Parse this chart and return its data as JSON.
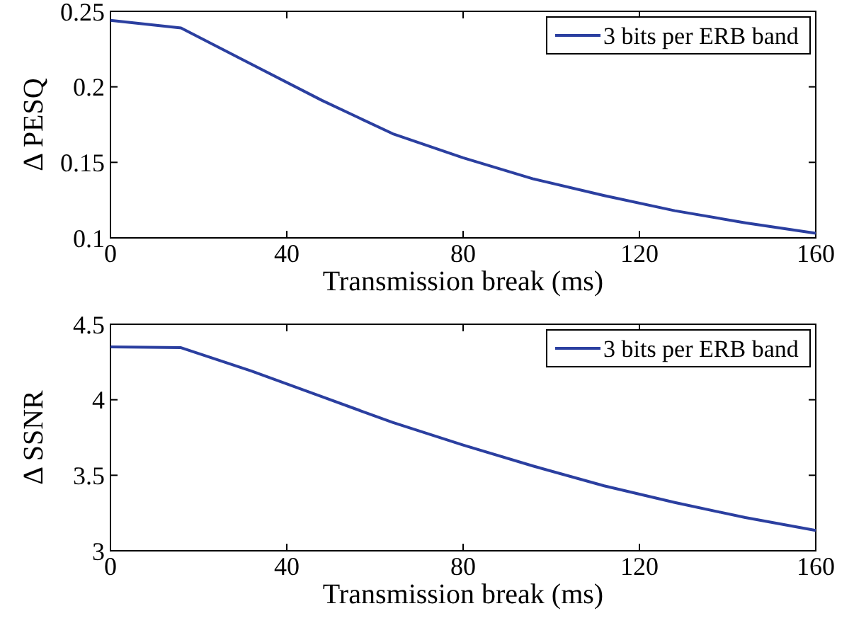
{
  "chart_data": [
    {
      "type": "line",
      "xlabel": "Transmission break (ms)",
      "ylabel": "Δ PESQ",
      "x": [
        0,
        16,
        32,
        48,
        64,
        80,
        96,
        112,
        128,
        144,
        160
      ],
      "series": [
        {
          "name": "3 bits per ERB band",
          "color": "#2b3fa0",
          "values": [
            0.244,
            0.239,
            0.215,
            0.191,
            0.169,
            0.153,
            0.139,
            0.128,
            0.118,
            0.11,
            0.103
          ]
        }
      ],
      "xlim": [
        0,
        160
      ],
      "xticks": [
        0,
        40,
        80,
        120,
        160
      ],
      "ylim": [
        0.1,
        0.25
      ],
      "yticks": [
        0.1,
        0.15,
        0.2,
        0.25
      ],
      "legend": "top right",
      "grid": false,
      "line_style": "solid",
      "marker": "none"
    },
    {
      "type": "line",
      "xlabel": "Transmission break (ms)",
      "ylabel": "Δ SSNR",
      "x": [
        0,
        16,
        32,
        48,
        64,
        80,
        96,
        112,
        128,
        144,
        160
      ],
      "series": [
        {
          "name": "3 bits per ERB band",
          "color": "#2b3fa0",
          "values": [
            4.35,
            4.345,
            4.19,
            4.02,
            3.85,
            3.7,
            3.56,
            3.43,
            3.32,
            3.22,
            3.135
          ]
        }
      ],
      "xlim": [
        0,
        160
      ],
      "xticks": [
        0,
        40,
        80,
        120,
        160
      ],
      "ylim": [
        3,
        4.5
      ],
      "yticks": [
        3,
        3.5,
        4,
        4.5
      ],
      "legend": "top right",
      "grid": false,
      "line_style": "solid",
      "marker": "none"
    }
  ]
}
